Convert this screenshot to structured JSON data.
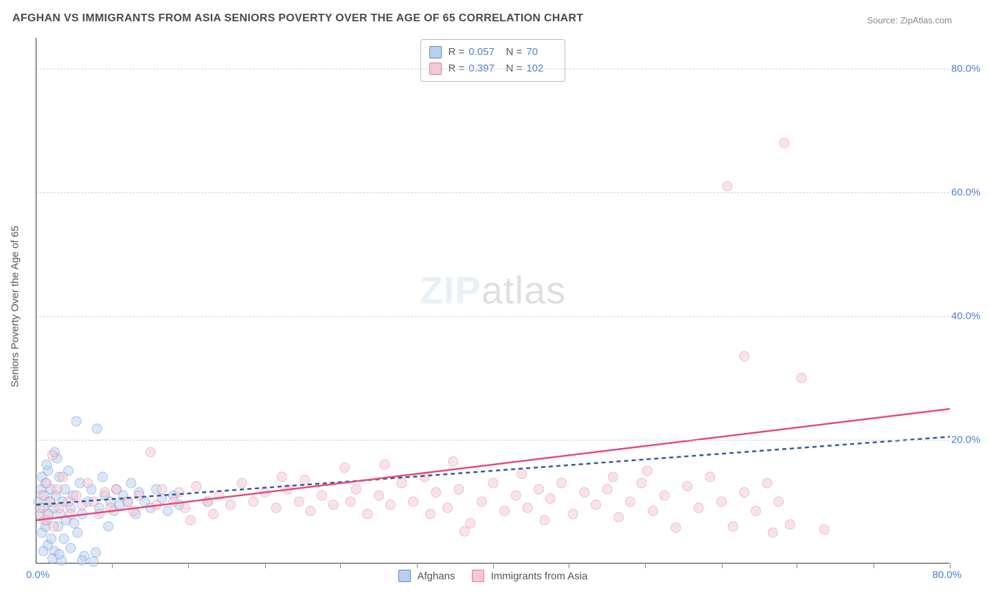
{
  "title": "AFGHAN VS IMMIGRANTS FROM ASIA SENIORS POVERTY OVER THE AGE OF 65 CORRELATION CHART",
  "source": "Source: ZipAtlas.com",
  "y_axis_title": "Seniors Poverty Over the Age of 65",
  "watermark_bold": "ZIP",
  "watermark_rest": "atlas",
  "chart": {
    "type": "scatter",
    "xlim": [
      0,
      80
    ],
    "ylim": [
      0,
      85
    ],
    "x_origin_label": "0.0%",
    "x_max_label": "80.0%",
    "x_ticks": [
      6.6,
      13.3,
      20,
      26.6,
      33.3,
      40,
      46.6,
      53.3,
      60,
      66.6,
      73.3,
      80
    ],
    "y_gridlines": [
      20,
      40,
      60,
      80
    ],
    "y_tick_labels": [
      "20.0%",
      "40.0%",
      "60.0%",
      "80.0%"
    ],
    "background_color": "#ffffff",
    "grid_color": "#d0d0d0",
    "axis_label_color": "#4a7fd8",
    "title_color": "#4a4a4a",
    "title_fontsize": 16,
    "label_fontsize": 15,
    "marker_radius": 7,
    "marker_opacity": 0.5,
    "line_width": 2.5
  },
  "series": [
    {
      "name": "Afghans",
      "fill": "#b8d0f0",
      "stroke": "#5a8ac8",
      "trend_color": "#2e5a9e",
      "trend_dash": "6 5",
      "R": "0.057",
      "N": "70",
      "trend": {
        "x1": 0,
        "y1": 9.5,
        "x2": 80,
        "y2": 20.5
      },
      "points": [
        [
          0.2,
          10
        ],
        [
          0.3,
          8
        ],
        [
          0.4,
          12
        ],
        [
          0.5,
          5
        ],
        [
          0.5,
          14
        ],
        [
          0.6,
          9
        ],
        [
          0.7,
          11
        ],
        [
          0.8,
          6
        ],
        [
          0.8,
          13
        ],
        [
          0.9,
          7
        ],
        [
          1.0,
          3
        ],
        [
          1.0,
          15
        ],
        [
          1.1,
          8
        ],
        [
          1.2,
          10
        ],
        [
          1.3,
          4
        ],
        [
          1.3,
          12
        ],
        [
          1.5,
          9
        ],
        [
          1.6,
          2
        ],
        [
          1.7,
          11
        ],
        [
          1.8,
          17
        ],
        [
          1.9,
          6
        ],
        [
          2.0,
          14
        ],
        [
          2.1,
          8
        ],
        [
          2.2,
          0.5
        ],
        [
          2.3,
          10
        ],
        [
          2.5,
          12
        ],
        [
          2.6,
          7
        ],
        [
          2.8,
          15
        ],
        [
          3.0,
          9
        ],
        [
          3.2,
          11
        ],
        [
          3.5,
          23
        ],
        [
          3.6,
          5
        ],
        [
          3.8,
          13
        ],
        [
          4.0,
          8
        ],
        [
          4.2,
          1.2
        ],
        [
          4.5,
          10
        ],
        [
          4.8,
          12
        ],
        [
          5.0,
          0.3
        ],
        [
          5.3,
          21.8
        ],
        [
          5.5,
          9
        ],
        [
          5.8,
          14
        ],
        [
          6.0,
          11
        ],
        [
          6.3,
          6
        ],
        [
          6.5,
          10
        ],
        [
          6.8,
          8.5
        ],
        [
          7.0,
          12
        ],
        [
          7.3,
          9.5
        ],
        [
          7.6,
          11
        ],
        [
          8.0,
          10
        ],
        [
          8.3,
          13
        ],
        [
          8.7,
          8
        ],
        [
          9.0,
          11.5
        ],
        [
          9.5,
          10
        ],
        [
          10.0,
          9
        ],
        [
          10.5,
          12
        ],
        [
          11.0,
          10.5
        ],
        [
          11.5,
          8.5
        ],
        [
          12.0,
          11
        ],
        [
          12.5,
          9.5
        ],
        [
          15.0,
          10
        ],
        [
          1.4,
          0.8
        ],
        [
          2.0,
          1.5
        ],
        [
          0.6,
          2
        ],
        [
          4.0,
          0.5
        ],
        [
          3.0,
          2.5
        ],
        [
          5.2,
          1.8
        ],
        [
          0.9,
          16
        ],
        [
          1.6,
          18
        ],
        [
          2.4,
          4
        ],
        [
          3.3,
          6.5
        ]
      ]
    },
    {
      "name": "Immigrants from Asia",
      "fill": "#f5c8d5",
      "stroke": "#e07a9a",
      "trend_color": "#e8487a",
      "trend_dash": "",
      "R": "0.397",
      "N": "102",
      "trend": {
        "x1": 0,
        "y1": 7.0,
        "x2": 80,
        "y2": 25.0
      },
      "points": [
        [
          0.3,
          9
        ],
        [
          0.5,
          11
        ],
        [
          0.7,
          7
        ],
        [
          0.9,
          13
        ],
        [
          1.0,
          8
        ],
        [
          1.2,
          10
        ],
        [
          1.4,
          17.5
        ],
        [
          1.5,
          6
        ],
        [
          1.8,
          12
        ],
        [
          2.0,
          9
        ],
        [
          2.3,
          14
        ],
        [
          2.8,
          10
        ],
        [
          3.0,
          8
        ],
        [
          3.5,
          11
        ],
        [
          4.0,
          9.5
        ],
        [
          4.5,
          13
        ],
        [
          5.0,
          10
        ],
        [
          5.5,
          8
        ],
        [
          6.0,
          11.5
        ],
        [
          6.5,
          9
        ],
        [
          7.0,
          12
        ],
        [
          8.0,
          10
        ],
        [
          8.5,
          8.5
        ],
        [
          9.0,
          11
        ],
        [
          10.0,
          18
        ],
        [
          10.5,
          9.5
        ],
        [
          11.0,
          12
        ],
        [
          12.0,
          10
        ],
        [
          12.5,
          11.5
        ],
        [
          13.0,
          9
        ],
        [
          14.0,
          12.5
        ],
        [
          15.0,
          10
        ],
        [
          15.5,
          8
        ],
        [
          16.0,
          11
        ],
        [
          17.0,
          9.5
        ],
        [
          18.0,
          13
        ],
        [
          19.0,
          10
        ],
        [
          20.0,
          11.5
        ],
        [
          21.0,
          9
        ],
        [
          22.0,
          12
        ],
        [
          23.0,
          10
        ],
        [
          23.5,
          13.5
        ],
        [
          24.0,
          8.5
        ],
        [
          25.0,
          11
        ],
        [
          26.0,
          9.5
        ],
        [
          27.0,
          15.5
        ],
        [
          27.5,
          10
        ],
        [
          28.0,
          12
        ],
        [
          29.0,
          8
        ],
        [
          30.0,
          11
        ],
        [
          30.5,
          16
        ],
        [
          31.0,
          9.5
        ],
        [
          32.0,
          13
        ],
        [
          33.0,
          10
        ],
        [
          34.0,
          14
        ],
        [
          34.5,
          8
        ],
        [
          35.0,
          11.5
        ],
        [
          36.0,
          9
        ],
        [
          36.5,
          16.5
        ],
        [
          37.0,
          12
        ],
        [
          38.0,
          6.5
        ],
        [
          39.0,
          10
        ],
        [
          40.0,
          13
        ],
        [
          41.0,
          8.5
        ],
        [
          42.0,
          11
        ],
        [
          42.5,
          14.5
        ],
        [
          43.0,
          9
        ],
        [
          44.0,
          12
        ],
        [
          44.5,
          7
        ],
        [
          45.0,
          10.5
        ],
        [
          46.0,
          13
        ],
        [
          47.0,
          8
        ],
        [
          48.0,
          11.5
        ],
        [
          49.0,
          9.5
        ],
        [
          50.0,
          12
        ],
        [
          50.5,
          14
        ],
        [
          51.0,
          7.5
        ],
        [
          52.0,
          10
        ],
        [
          53.0,
          13
        ],
        [
          54.0,
          8.5
        ],
        [
          55.0,
          11
        ],
        [
          56.0,
          5.8
        ],
        [
          57.0,
          12.5
        ],
        [
          58.0,
          9
        ],
        [
          59.0,
          14
        ],
        [
          60.0,
          10
        ],
        [
          61.0,
          6
        ],
        [
          62.0,
          11.5
        ],
        [
          63.0,
          8.5
        ],
        [
          64.0,
          13
        ],
        [
          64.5,
          5
        ],
        [
          65.0,
          10
        ],
        [
          66.0,
          6.3
        ],
        [
          67.0,
          30
        ],
        [
          69.0,
          5.5
        ],
        [
          60.5,
          61
        ],
        [
          65.5,
          68
        ],
        [
          62.0,
          33.5
        ],
        [
          13.5,
          7
        ],
        [
          21.5,
          14
        ],
        [
          37.5,
          5.2
        ],
        [
          53.5,
          15
        ]
      ]
    }
  ],
  "bottom_legend": [
    {
      "label": "Afghans",
      "fill": "#b8d0f0",
      "stroke": "#5a8ac8"
    },
    {
      "label": "Immigrants from Asia",
      "fill": "#f5c8d5",
      "stroke": "#e07a9a"
    }
  ]
}
